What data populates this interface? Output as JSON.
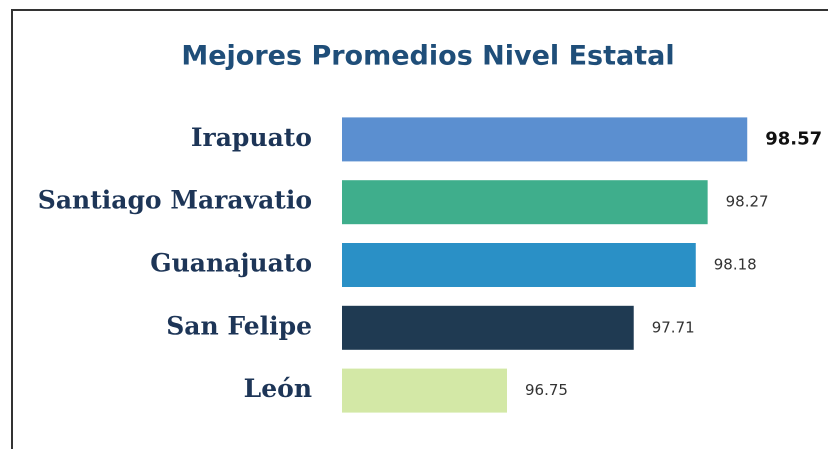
{
  "chart_data": {
    "type": "barh",
    "title": "Mejores Promedios Nivel Estatal",
    "categories": [
      "Irapuato",
      "Santiago Maravatio",
      "Guanajuato",
      "San Felipe",
      "León"
    ],
    "values": [
      98.57,
      98.27,
      98.18,
      97.71,
      96.75
    ],
    "colors": [
      "#5b8fd0",
      "#3fae8c",
      "#2a90c6",
      "#1f3a52",
      "#d3e8a6"
    ],
    "xlim": [
      95.5,
      99
    ]
  }
}
